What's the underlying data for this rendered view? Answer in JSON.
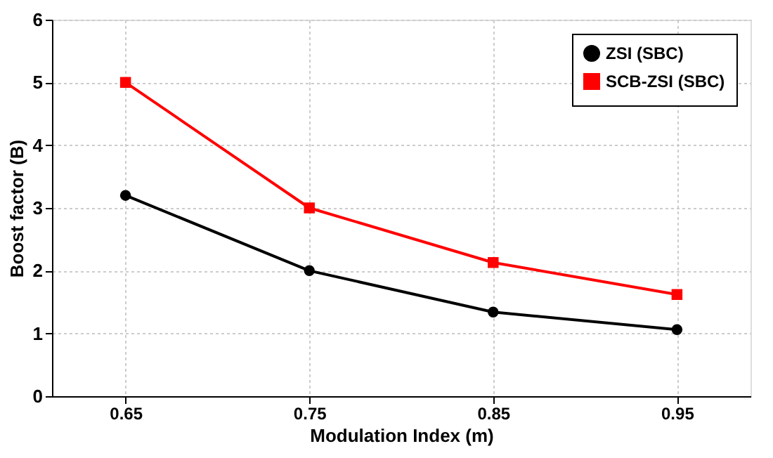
{
  "chart_data": {
    "type": "line",
    "xlabel": "Modulation Index (m)",
    "ylabel": "Boost factor (B)",
    "x": [
      0.65,
      0.75,
      0.85,
      0.95
    ],
    "series": [
      {
        "name": "ZSI (SBC)",
        "color": "#000000",
        "marker": "circle",
        "values": [
          3.2,
          2.0,
          1.34,
          1.06
        ]
      },
      {
        "name": "SCB-ZSI (SBC)",
        "color": "#ff0000",
        "marker": "square",
        "values": [
          5.0,
          3.0,
          2.13,
          1.62
        ]
      }
    ],
    "xlim": [
      0.61,
      0.99
    ],
    "xticks": [
      0.65,
      0.75,
      0.85,
      0.95
    ],
    "ylim": [
      0,
      6
    ],
    "yticks": [
      0,
      1,
      2,
      3,
      4,
      5,
      6
    ],
    "grid": true,
    "legend": "top right",
    "line_style": "solid"
  }
}
